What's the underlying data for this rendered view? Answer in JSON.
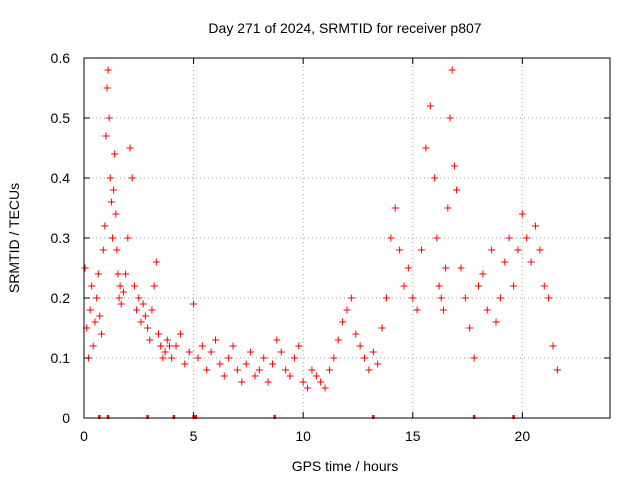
{
  "chart_data": {
    "type": "scatter",
    "title": "Day 271 of 2024, SRMTID for receiver p807",
    "xlabel": "GPS time / hours",
    "ylabel": "SRMTID / TECUs",
    "xlim": [
      0,
      24
    ],
    "ylim": [
      0,
      0.6
    ],
    "xticks": [
      0,
      5,
      10,
      15,
      20
    ],
    "xtick_labels": [
      "0",
      "5",
      "10",
      "15",
      "20"
    ],
    "yticks": [
      0,
      0.1,
      0.2,
      0.3,
      0.4,
      0.5,
      0.6
    ],
    "ytick_labels": [
      "0",
      "0.1",
      "0.2",
      "0.3",
      "0.4",
      "0.5",
      "0.6"
    ],
    "grid": true,
    "marker": "+",
    "color": "#ff0000",
    "series": [
      {
        "name": "SRMTID",
        "x": [
          0.05,
          0.12,
          0.2,
          0.28,
          0.35,
          0.42,
          0.5,
          0.58,
          0.65,
          0.72,
          0.8,
          0.88,
          0.95,
          1.0,
          1.05,
          1.1,
          1.15,
          1.2,
          1.25,
          1.3,
          1.35,
          1.4,
          1.45,
          1.5,
          1.55,
          1.6,
          1.65,
          1.7,
          1.8,
          1.9,
          2.0,
          2.1,
          2.2,
          2.3,
          2.4,
          2.5,
          2.6,
          2.7,
          2.8,
          2.9,
          3.0,
          3.1,
          3.2,
          3.3,
          3.4,
          3.5,
          3.6,
          3.7,
          3.8,
          3.9,
          4.0,
          4.2,
          4.4,
          4.6,
          4.8,
          5.0,
          5.2,
          5.4,
          5.6,
          5.8,
          6.0,
          6.2,
          6.4,
          6.6,
          6.8,
          7.0,
          7.2,
          7.4,
          7.6,
          7.8,
          8.0,
          8.2,
          8.4,
          8.6,
          8.8,
          9.0,
          9.2,
          9.4,
          9.6,
          9.8,
          10.0,
          10.2,
          10.4,
          10.6,
          10.8,
          11.0,
          11.2,
          11.4,
          11.6,
          11.8,
          12.0,
          12.2,
          12.4,
          12.6,
          12.8,
          13.0,
          13.2,
          13.4,
          13.6,
          13.8,
          14.0,
          14.2,
          14.4,
          14.6,
          14.8,
          15.0,
          15.2,
          15.4,
          15.6,
          15.8,
          16.0,
          16.1,
          16.2,
          16.3,
          16.4,
          16.5,
          16.6,
          16.7,
          16.8,
          16.9,
          17.0,
          17.2,
          17.4,
          17.6,
          17.8,
          18.0,
          18.2,
          18.4,
          18.6,
          18.8,
          19.0,
          19.2,
          19.4,
          19.6,
          19.8,
          20.0,
          20.2,
          20.4,
          20.6,
          20.8,
          21.0,
          21.2,
          21.4,
          21.6
        ],
        "y": [
          0.25,
          0.15,
          0.1,
          0.18,
          0.22,
          0.12,
          0.16,
          0.2,
          0.24,
          0.17,
          0.14,
          0.28,
          0.32,
          0.47,
          0.55,
          0.58,
          0.5,
          0.4,
          0.36,
          0.3,
          0.38,
          0.44,
          0.34,
          0.28,
          0.24,
          0.2,
          0.22,
          0.19,
          0.21,
          0.24,
          0.3,
          0.45,
          0.4,
          0.22,
          0.18,
          0.2,
          0.16,
          0.19,
          0.17,
          0.15,
          0.13,
          0.18,
          0.22,
          0.26,
          0.14,
          0.12,
          0.1,
          0.11,
          0.13,
          0.12,
          0.1,
          0.12,
          0.14,
          0.09,
          0.11,
          0.19,
          0.1,
          0.12,
          0.08,
          0.11,
          0.13,
          0.09,
          0.07,
          0.1,
          0.12,
          0.08,
          0.06,
          0.09,
          0.11,
          0.07,
          0.08,
          0.1,
          0.06,
          0.09,
          0.13,
          0.11,
          0.08,
          0.07,
          0.1,
          0.12,
          0.06,
          0.05,
          0.08,
          0.07,
          0.06,
          0.05,
          0.08,
          0.1,
          0.13,
          0.16,
          0.18,
          0.2,
          0.14,
          0.12,
          0.1,
          0.08,
          0.11,
          0.09,
          0.15,
          0.2,
          0.3,
          0.35,
          0.28,
          0.22,
          0.25,
          0.2,
          0.18,
          0.28,
          0.45,
          0.52,
          0.4,
          0.3,
          0.22,
          0.2,
          0.18,
          0.25,
          0.35,
          0.5,
          0.58,
          0.42,
          0.38,
          0.25,
          0.2,
          0.15,
          0.1,
          0.22,
          0.24,
          0.18,
          0.28,
          0.16,
          0.2,
          0.26,
          0.3,
          0.22,
          0.28,
          0.34,
          0.3,
          0.26,
          0.32,
          0.28,
          0.22,
          0.2,
          0.12,
          0.08
        ]
      }
    ],
    "data_gaps_x": [
      0.7,
      1.1,
      2.9,
      4.1,
      5.0,
      5.1,
      8.7,
      13.2,
      17.8,
      19.6
    ]
  }
}
